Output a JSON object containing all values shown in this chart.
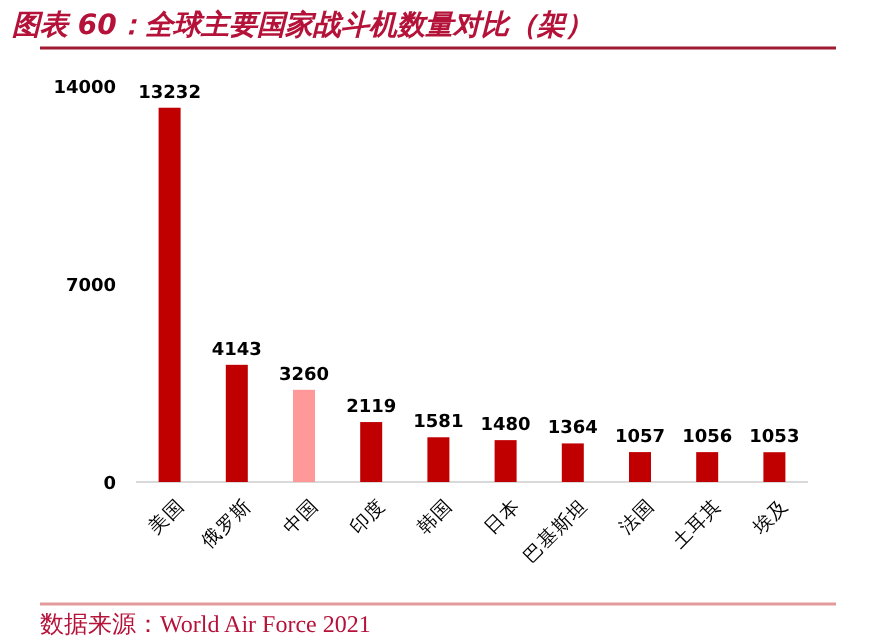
{
  "chart_data": {
    "type": "bar",
    "title": "图表 60：全球主要国家战斗机数量对比（架）",
    "categories": [
      "美国",
      "俄罗斯",
      "中国",
      "印度",
      "韩国",
      "日本",
      "巴基斯坦",
      "法国",
      "土耳其",
      "埃及"
    ],
    "values": [
      13232,
      4143,
      3260,
      2119,
      1581,
      1480,
      1364,
      1057,
      1056,
      1053
    ],
    "colors": [
      "#c00000",
      "#c00000",
      "#ff9999",
      "#c00000",
      "#c00000",
      "#c00000",
      "#c00000",
      "#c00000",
      "#c00000",
      "#c00000"
    ],
    "ylim": [
      0,
      14000
    ],
    "yticks": [
      0,
      7000,
      14000
    ],
    "data_labels": true,
    "annotations": [
      "数据来源：World Air Force 2021"
    ]
  }
}
